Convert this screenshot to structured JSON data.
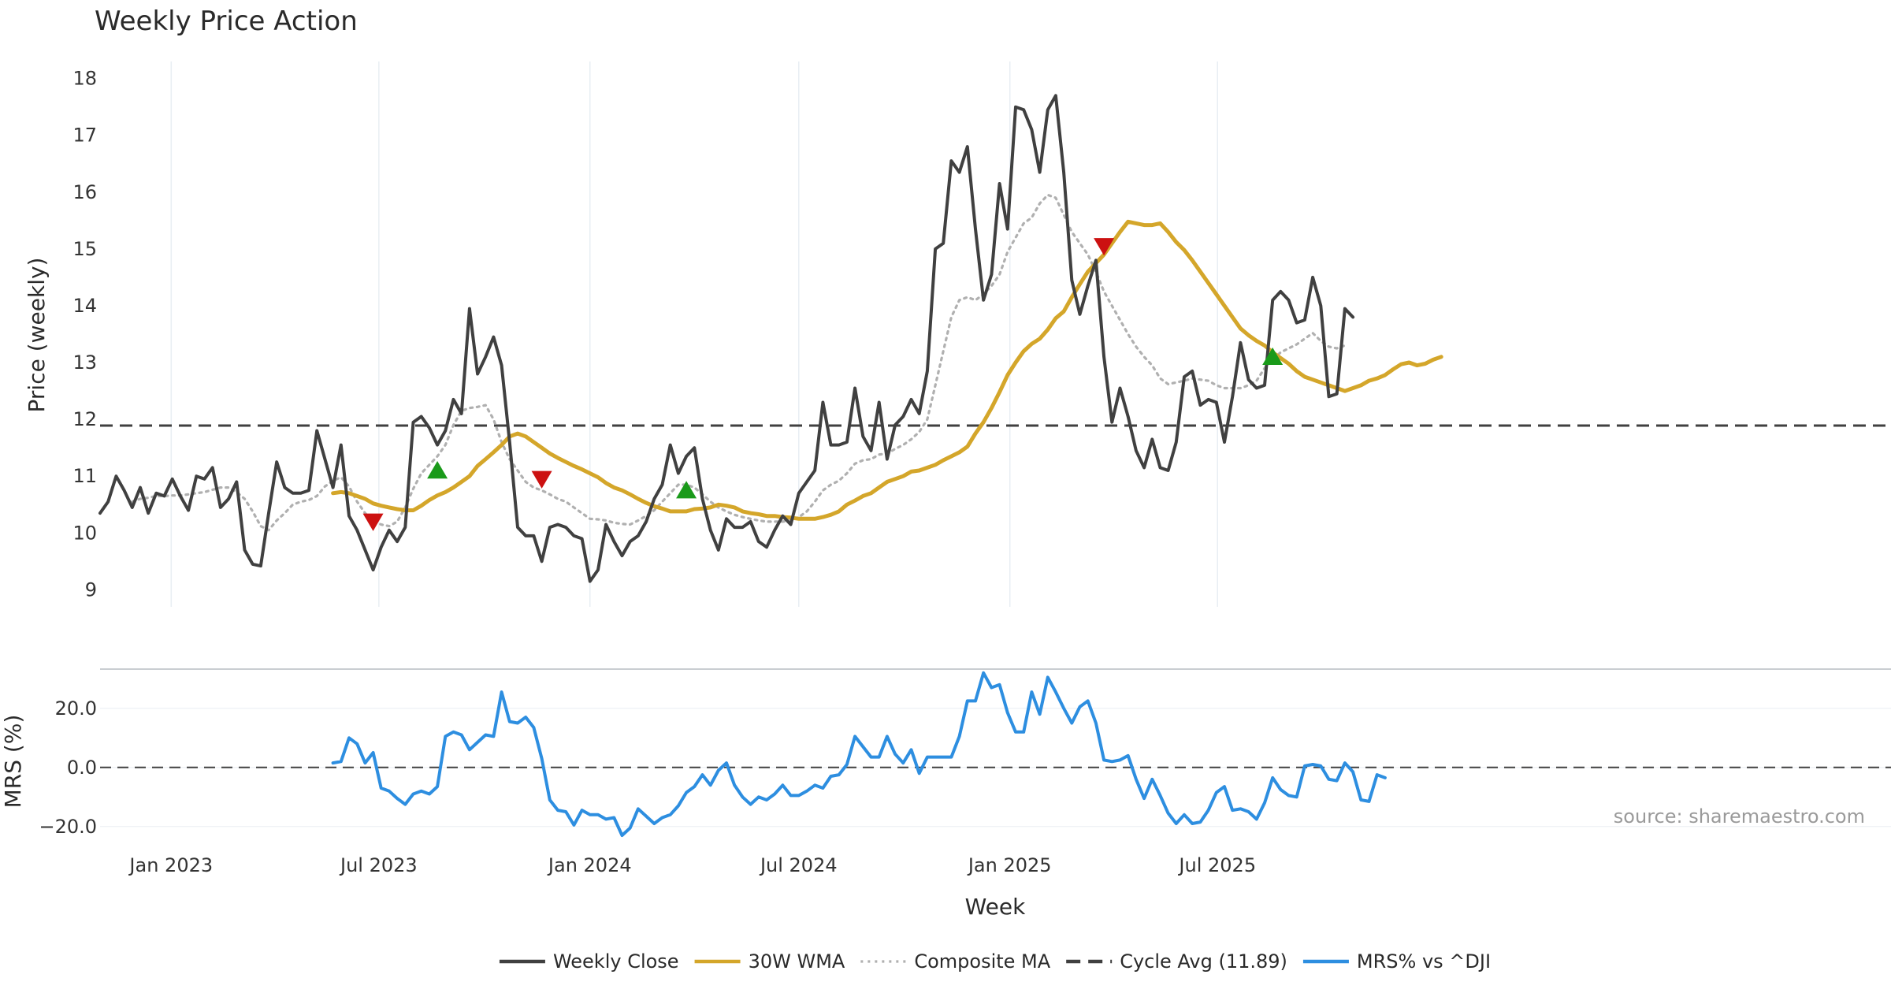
{
  "chart_data": [
    {
      "type": "line",
      "panel": "price",
      "title": "Weekly Price Action",
      "ylabel": "Price (weekly)",
      "xlabel": "Week",
      "ylim": [
        8.7,
        18.3
      ],
      "yticks": [
        9,
        10,
        11,
        12,
        13,
        14,
        15,
        16,
        17,
        18
      ],
      "x_start": "2022-10-31",
      "week_count": 224,
      "x_ticks": [
        {
          "label": "Jan 2023",
          "date": "2023-01-01"
        },
        {
          "label": "Jul 2023",
          "date": "2023-07-01"
        },
        {
          "label": "Jan 2024",
          "date": "2024-01-01"
        },
        {
          "label": "Jul 2024",
          "date": "2024-07-01"
        },
        {
          "label": "Jan 2025",
          "date": "2025-01-01"
        },
        {
          "label": "Jul 2025",
          "date": "2025-07-01"
        }
      ],
      "series": [
        {
          "name": "Weekly Close",
          "color": "#404040",
          "style": "solid",
          "start_index": 0,
          "values": [
            10.35,
            10.55,
            11.0,
            10.75,
            10.45,
            10.8,
            10.35,
            10.7,
            10.65,
            10.95,
            10.65,
            10.4,
            11.0,
            10.95,
            11.15,
            10.45,
            10.6,
            10.9,
            9.7,
            9.45,
            9.42,
            10.35,
            11.25,
            10.8,
            10.7,
            10.7,
            10.75,
            11.8,
            11.3,
            10.8,
            11.55,
            10.3,
            10.05,
            9.7,
            9.35,
            9.75,
            10.05,
            9.85,
            10.1,
            11.95,
            12.05,
            11.85,
            11.55,
            11.8,
            12.35,
            12.1,
            13.95,
            12.8,
            13.1,
            13.45,
            12.95,
            11.6,
            10.1,
            9.95,
            9.95,
            9.5,
            10.1,
            10.15,
            10.1,
            9.95,
            9.9,
            9.15,
            9.35,
            10.15,
            9.85,
            9.6,
            9.85,
            9.95,
            10.2,
            10.6,
            10.85,
            11.55,
            11.05,
            11.35,
            11.5,
            10.6,
            10.05,
            9.7,
            10.25,
            10.1,
            10.1,
            10.2,
            9.85,
            9.75,
            10.05,
            10.3,
            10.15,
            10.7,
            10.9,
            11.1,
            12.3,
            11.55,
            11.55,
            11.6,
            12.55,
            11.7,
            11.45,
            12.3,
            11.3,
            11.9,
            12.05,
            12.35,
            12.1,
            12.85,
            15.0,
            15.1,
            16.55,
            16.35,
            16.8,
            15.35,
            14.1,
            14.55,
            16.15,
            15.35,
            17.5,
            17.45,
            17.1,
            16.35,
            17.45,
            17.7,
            16.35,
            14.45,
            13.85,
            14.35,
            14.8,
            13.1,
            11.95,
            12.55,
            12.05,
            11.45,
            11.15,
            11.65,
            11.15,
            11.1,
            11.6,
            12.75,
            12.85,
            12.25,
            12.35,
            12.3,
            11.6,
            12.4,
            13.35,
            12.7,
            12.55,
            12.6,
            14.1,
            14.25,
            14.1,
            13.7,
            13.75,
            14.5,
            14.0,
            12.4,
            12.45,
            13.95,
            13.8
          ]
        },
        {
          "name": "30W WMA",
          "color": "#d4a62a",
          "style": "solid",
          "start_index": 29,
          "values": [
            10.7,
            10.72,
            10.7,
            10.65,
            10.6,
            10.52,
            10.48,
            10.45,
            10.42,
            10.4,
            10.4,
            10.48,
            10.58,
            10.66,
            10.72,
            10.8,
            10.9,
            11.0,
            11.18,
            11.3,
            11.42,
            11.55,
            11.7,
            11.75,
            11.7,
            11.6,
            11.5,
            11.4,
            11.32,
            11.25,
            11.18,
            11.12,
            11.05,
            10.98,
            10.88,
            10.8,
            10.75,
            10.68,
            10.6,
            10.53,
            10.47,
            10.43,
            10.38,
            10.38,
            10.38,
            10.42,
            10.43,
            10.45,
            10.5,
            10.48,
            10.45,
            10.38,
            10.35,
            10.33,
            10.3,
            10.3,
            10.28,
            10.27,
            10.25,
            10.25,
            10.25,
            10.28,
            10.32,
            10.38,
            10.5,
            10.57,
            10.65,
            10.7,
            10.8,
            10.9,
            10.95,
            11.0,
            11.08,
            11.1,
            11.15,
            11.2,
            11.28,
            11.35,
            11.42,
            11.52,
            11.75,
            11.95,
            12.2,
            12.48,
            12.78,
            13.0,
            13.2,
            13.33,
            13.42,
            13.58,
            13.78,
            13.9,
            14.15,
            14.38,
            14.6,
            14.75,
            14.9,
            15.1,
            15.3,
            15.48,
            15.45,
            15.42,
            15.42,
            15.45,
            15.3,
            15.12,
            14.98,
            14.8,
            14.6,
            14.4,
            14.2,
            14.0,
            13.8,
            13.6,
            13.48,
            13.38,
            13.3,
            13.18,
            13.08,
            12.98,
            12.85,
            12.75,
            12.7,
            12.65,
            12.6,
            12.55,
            12.5,
            12.55,
            12.6,
            12.68,
            12.72,
            12.78,
            12.88,
            12.97,
            13.0,
            12.95,
            12.98,
            13.05,
            13.1
          ]
        },
        {
          "name": "Composite MA",
          "color": "#b0b0b0",
          "style": "dotted",
          "start_index": 4,
          "values": [
            10.55,
            10.6,
            10.62,
            10.65,
            10.65,
            10.66,
            10.66,
            10.68,
            10.7,
            10.72,
            10.76,
            10.8,
            10.8,
            10.72,
            10.6,
            10.38,
            10.12,
            10.05,
            10.22,
            10.35,
            10.5,
            10.55,
            10.58,
            10.65,
            10.82,
            10.92,
            10.98,
            10.82,
            10.55,
            10.35,
            10.2,
            10.15,
            10.12,
            10.2,
            10.45,
            10.78,
            11.05,
            11.2,
            11.35,
            11.55,
            11.9,
            12.15,
            12.2,
            12.22,
            12.25,
            12.0,
            11.6,
            11.3,
            11.1,
            10.9,
            10.8,
            10.75,
            10.68,
            10.6,
            10.55,
            10.45,
            10.35,
            10.25,
            10.24,
            10.22,
            10.18,
            10.16,
            10.15,
            10.22,
            10.3,
            10.4,
            10.55,
            10.7,
            10.85,
            10.85,
            10.8,
            10.68,
            10.55,
            10.45,
            10.38,
            10.32,
            10.28,
            10.25,
            10.22,
            10.2,
            10.2,
            10.2,
            10.22,
            10.28,
            10.38,
            10.55,
            10.75,
            10.85,
            10.92,
            11.05,
            11.22,
            11.28,
            11.3,
            11.38,
            11.4,
            11.48,
            11.55,
            11.65,
            11.78,
            12.0,
            12.6,
            13.2,
            13.8,
            14.1,
            14.15,
            14.1,
            14.2,
            14.35,
            14.55,
            14.95,
            15.2,
            15.45,
            15.55,
            15.8,
            15.95,
            15.9,
            15.6,
            15.3,
            15.1,
            14.9,
            14.6,
            14.25,
            14.0,
            13.75,
            13.5,
            13.28,
            13.1,
            12.95,
            12.72,
            12.62,
            12.65,
            12.68,
            12.72,
            12.7,
            12.68,
            12.6,
            12.55,
            12.55,
            12.55,
            12.6,
            12.68,
            12.9,
            13.05,
            13.18,
            13.25,
            13.32,
            13.42,
            13.52,
            13.38,
            13.28,
            13.25,
            13.3
          ]
        }
      ],
      "reference_lines": [
        {
          "name": "Cycle Avg (11.89)",
          "value": 11.89,
          "color": "#404040",
          "style": "dashed"
        }
      ],
      "markers": [
        {
          "type": "sell",
          "index": 34,
          "value": 10.2,
          "color": "#cc1111"
        },
        {
          "type": "buy",
          "index": 42,
          "value": 11.1,
          "color": "#1a9a1a"
        },
        {
          "type": "sell",
          "index": 55,
          "value": 10.95,
          "color": "#cc1111"
        },
        {
          "type": "buy",
          "index": 73,
          "value": 10.75,
          "color": "#1a9a1a"
        },
        {
          "type": "sell",
          "index": 125,
          "value": 15.05,
          "color": "#cc1111"
        },
        {
          "type": "buy",
          "index": 146,
          "value": 13.1,
          "color": "#1a9a1a"
        }
      ]
    },
    {
      "type": "line",
      "panel": "mrs",
      "ylabel": "MRS (%)",
      "ylim": [
        -23,
        33
      ],
      "yticks": [
        20,
        0,
        -20
      ],
      "ytick_labels": [
        "20.0",
        "0.0",
        "−20.0"
      ],
      "series": [
        {
          "name": "MRS% vs ^DJI",
          "color": "#2d8ee0",
          "style": "solid",
          "start_index": 29,
          "values": [
            1.5,
            2,
            10,
            8,
            1.5,
            5,
            -7,
            -8,
            -10.5,
            -12.5,
            -9,
            -8,
            -9,
            -6.5,
            10.5,
            12,
            11,
            6,
            8.5,
            11,
            10.5,
            25.5,
            15.5,
            15,
            17,
            13.5,
            3,
            -11,
            -14.5,
            -15,
            -19.5,
            -14.5,
            -16,
            -16,
            -17.5,
            -17,
            -23,
            -20.5,
            -14,
            -16.5,
            -19,
            -17,
            -16,
            -13,
            -8.5,
            -6.5,
            -2.5,
            -6,
            -1,
            1.5,
            -6,
            -10,
            -12.5,
            -10,
            -11,
            -9,
            -6,
            -9.5,
            -9.5,
            -8,
            -6,
            -7,
            -3,
            -2.5,
            1,
            10.5,
            7,
            3.5,
            3.5,
            10.5,
            4.5,
            1.5,
            6,
            -2,
            3.5,
            3.5,
            3.5,
            3.5,
            10.5,
            22.5,
            22.5,
            32,
            27,
            28,
            18.5,
            12,
            12,
            25.5,
            18,
            30.5,
            25.5,
            20,
            15,
            20.5,
            22.5,
            15,
            2.5,
            2,
            2.5,
            4,
            -4,
            -10.5,
            -4,
            -9.5,
            -15.5,
            -19,
            -16,
            -19,
            -18.5,
            -14.5,
            -8.5,
            -6.5,
            -14.5,
            -14,
            -15,
            -17.5,
            -12,
            -3.5,
            -7.5,
            -9.5,
            -10,
            0.5,
            1,
            0.5,
            -4,
            -4.5,
            1.5,
            -1.5,
            -11,
            -11.5,
            -2.5,
            -3.5
          ]
        }
      ],
      "reference_lines": [
        {
          "value": 0,
          "color": "#404040",
          "style": "dashed"
        }
      ],
      "source_text": "source: sharemaestro.com"
    }
  ],
  "legend": [
    {
      "label": "Weekly Close",
      "color": "#404040",
      "style": "solid"
    },
    {
      "label": "30W WMA",
      "color": "#d4a62a",
      "style": "solid"
    },
    {
      "label": "Composite MA",
      "color": "#b0b0b0",
      "style": "dotted"
    },
    {
      "label": "Cycle Avg (11.89)",
      "color": "#404040",
      "style": "dashed"
    },
    {
      "label": "MRS% vs ^DJI",
      "color": "#2d8ee0",
      "style": "solid"
    }
  ]
}
